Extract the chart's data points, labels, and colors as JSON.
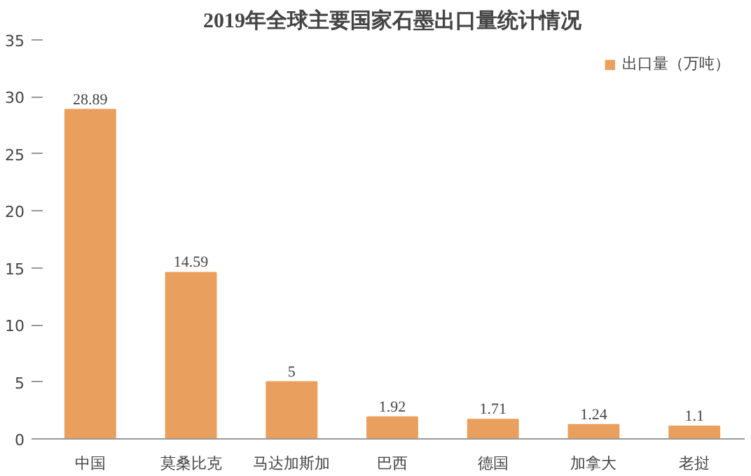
{
  "chart_data": {
    "type": "bar",
    "title": "2019年全球主要国家石墨出口量统计情况",
    "categories": [
      "中国",
      "莫桑比克",
      "马达加斯加",
      "巴西",
      "德国",
      "加拿大",
      "老挝"
    ],
    "series": [
      {
        "name": "出口量（万吨）",
        "color": "#e9a05e",
        "values": [
          28.89,
          14.59,
          5,
          1.92,
          1.71,
          1.24,
          1.1
        ]
      }
    ],
    "ylim": [
      0,
      35
    ],
    "yticks": [
      0,
      5,
      10,
      15,
      20,
      25,
      30,
      35
    ],
    "grid": false,
    "legend": "top right",
    "data_labels": true
  }
}
